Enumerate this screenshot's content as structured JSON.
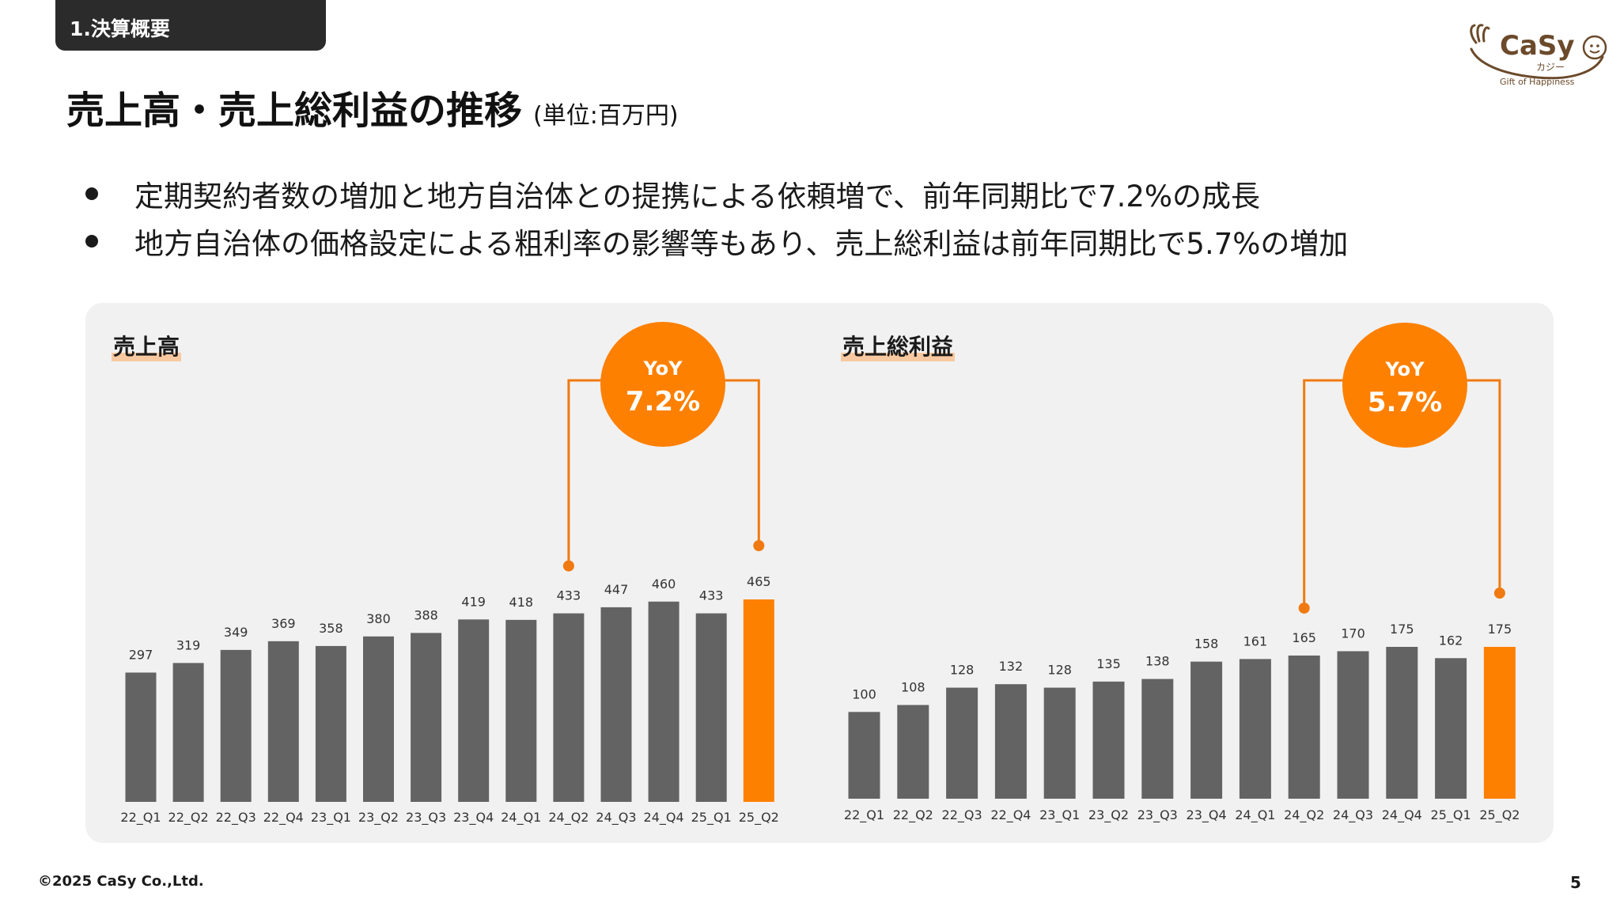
{
  "section_tab": "1.決算概要",
  "logo": {
    "name": "CaSy",
    "kana": "カジー",
    "tagline": "Gift of Happiness"
  },
  "page_title": "売上高・売上総利益の推移",
  "unit": "(単位:百万円)",
  "bullets": [
    "定期契約者数の増加と地方自治体との提携による依頼増で、前年同期比で7.2%の成長",
    "地方自治体の価格設定による粗利率の影響等もあり、売上総利益は前年同期比で5.7%の増加"
  ],
  "colors": {
    "bar": "#636363",
    "highlight": "#fd8001",
    "panel": "#f1f1f1",
    "marker": "#f07a10"
  },
  "chart_data": [
    {
      "type": "bar",
      "title": "売上高",
      "categories": [
        "22_Q1",
        "22_Q2",
        "22_Q3",
        "22_Q4",
        "23_Q1",
        "23_Q2",
        "23_Q3",
        "23_Q4",
        "24_Q1",
        "24_Q2",
        "24_Q3",
        "24_Q4",
        "25_Q1",
        "25_Q2"
      ],
      "values": [
        297,
        319,
        349,
        369,
        358,
        380,
        388,
        419,
        418,
        433,
        447,
        460,
        433,
        465
      ],
      "highlight_index": 13,
      "yoy": {
        "label": "YoY",
        "value": "7.2%",
        "from": "24_Q2",
        "to": "25_Q2"
      }
    },
    {
      "type": "bar",
      "title": "売上総利益",
      "categories": [
        "22_Q1",
        "22_Q2",
        "22_Q3",
        "22_Q4",
        "23_Q1",
        "23_Q2",
        "23_Q3",
        "23_Q4",
        "24_Q1",
        "24_Q2",
        "24_Q3",
        "24_Q4",
        "25_Q1",
        "25_Q2"
      ],
      "values": [
        100,
        108,
        128,
        132,
        128,
        135,
        138,
        158,
        161,
        165,
        170,
        175,
        162,
        175
      ],
      "highlight_index": 13,
      "yoy": {
        "label": "YoY",
        "value": "5.7%",
        "from": "24_Q2",
        "to": "25_Q2"
      }
    }
  ],
  "footer": {
    "copyright": "©2025 CaSy Co.,Ltd.",
    "page": "5"
  }
}
